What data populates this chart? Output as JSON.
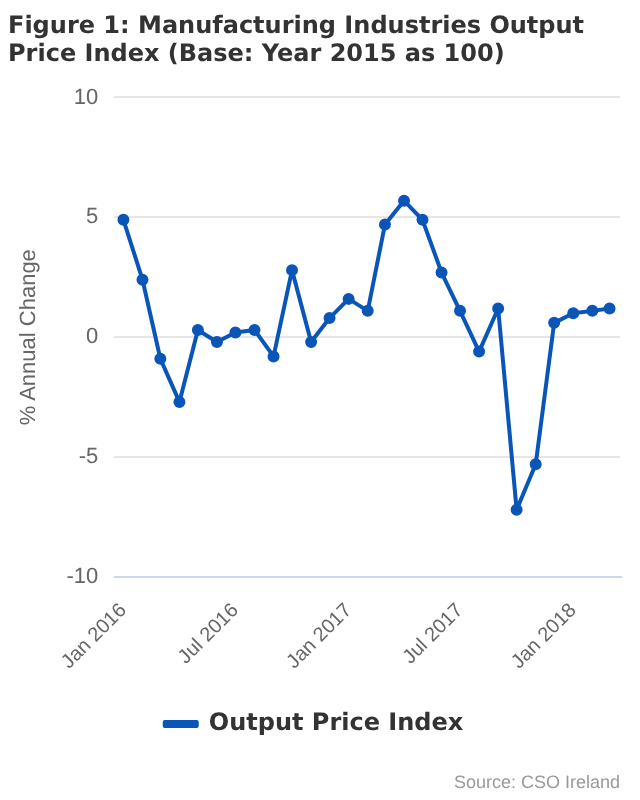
{
  "chart_data": {
    "type": "line",
    "title": "Figure 1: Manufacturing Industries Output Price Index (Base: Year 2015 as 100)",
    "ylabel": "% Annual Change",
    "x": [
      "2016-01",
      "2016-02",
      "2016-03",
      "2016-04",
      "2016-05",
      "2016-06",
      "2016-07",
      "2016-08",
      "2016-09",
      "2016-10",
      "2016-11",
      "2016-12",
      "2017-01",
      "2017-02",
      "2017-03",
      "2017-04",
      "2017-05",
      "2017-06",
      "2017-07",
      "2017-08",
      "2017-09",
      "2017-10",
      "2017-11",
      "2017-12",
      "2018-01",
      "2018-02",
      "2018-03"
    ],
    "series": [
      {
        "name": "Output Price Index",
        "color": "#0a56b8",
        "values": [
          4.9,
          2.4,
          -0.9,
          -2.7,
          0.3,
          -0.2,
          0.2,
          0.3,
          -0.8,
          2.8,
          -0.2,
          0.8,
          1.6,
          1.1,
          4.7,
          5.7,
          4.9,
          2.7,
          1.1,
          -0.6,
          1.2,
          -7.2,
          -5.3,
          0.6,
          1.0,
          1.1,
          1.2
        ]
      }
    ],
    "xlim": [
      "2015-12-17",
      "2018-03-18"
    ],
    "xticks": [
      {
        "value": "2016-01",
        "label": "Jan 2016"
      },
      {
        "value": "2016-07",
        "label": "Jul 2016"
      },
      {
        "value": "2017-01",
        "label": "Jan 2017"
      },
      {
        "value": "2017-07",
        "label": "Jul 2017"
      },
      {
        "value": "2018-01",
        "label": "Jan 2018"
      }
    ],
    "ylim": [
      -10,
      10
    ],
    "yticks": [
      -10,
      -5,
      0,
      5,
      10
    ],
    "grid": "y",
    "legend": "bottom",
    "marker": "circle",
    "line_style": "solid",
    "annotations": [
      "Source: CSO Ireland"
    ]
  }
}
